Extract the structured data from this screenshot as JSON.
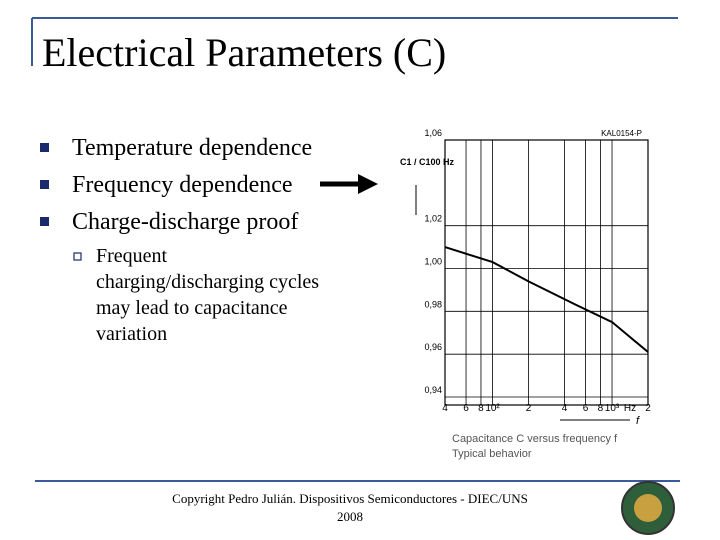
{
  "slide": {
    "title": "Electrical Parameters (C)",
    "bullets": [
      "Temperature dependence",
      "Frequency dependence",
      "Charge-discharge proof"
    ],
    "sub_bullet_lines": [
      "Frequent",
      "charging/discharging cycles",
      "may lead to capacitance",
      "variation"
    ],
    "footer": [
      "Copyright Pedro Julián. Dispositivos Semiconductores - DIEC/UNS",
      "2008"
    ]
  },
  "chart_data": {
    "type": "line",
    "code": "KAL0154-P",
    "y_label": "C1 / C100 Hz",
    "x_label": "f",
    "x_unit": "Hz",
    "caption": [
      "Capacitance C versus frequency f",
      "Typical behavior"
    ],
    "x": [
      40,
      100,
      200,
      500,
      1000,
      2000
    ],
    "values": [
      1.01,
      1.003,
      0.994,
      0.983,
      0.975,
      0.961
    ],
    "color": "#000000",
    "log_x": true,
    "grid": true,
    "xlim": [
      40,
      2000
    ],
    "xticks": [
      {
        "value": 40,
        "label": "4"
      },
      {
        "value": 60,
        "label": "6"
      },
      {
        "value": 80,
        "label": "8"
      },
      {
        "value": 100,
        "label": "10²"
      },
      {
        "value": 200,
        "label": "2"
      },
      {
        "value": 400,
        "label": "4"
      },
      {
        "value": 600,
        "label": "6"
      },
      {
        "value": 800,
        "label": "8"
      },
      {
        "value": 1000,
        "label": "10³"
      },
      {
        "value": 2000,
        "label": "2"
      }
    ],
    "ylim": [
      0.94,
      1.06
    ],
    "yticks": [
      {
        "value": 0.94,
        "label": "0,94"
      },
      {
        "value": 0.96,
        "label": "0,96"
      },
      {
        "value": 0.98,
        "label": "0,98"
      },
      {
        "value": 1.0,
        "label": "1,00"
      },
      {
        "value": 1.02,
        "label": "1,02"
      },
      {
        "value": 1.06,
        "label": "1,06"
      }
    ]
  }
}
